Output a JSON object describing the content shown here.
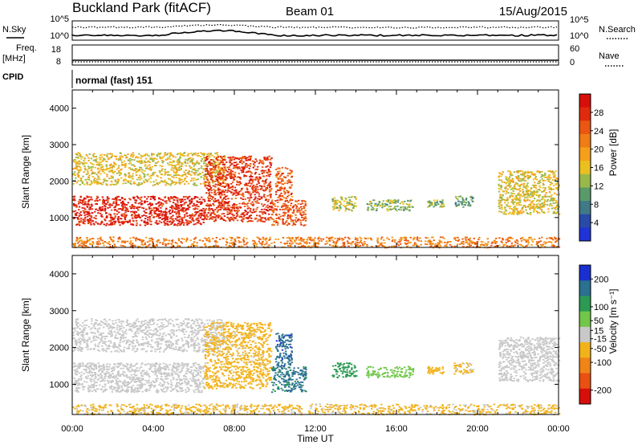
{
  "header": {
    "site": "Buckland Park (fitACF)",
    "beam": "Beam 01",
    "date": "15/Aug/2015"
  },
  "noise_panel": {
    "left_label": "N.Sky",
    "left_ticks": [
      "10^5",
      "10^0"
    ],
    "right_ticks": [
      "10^5",
      "10^0"
    ],
    "right_label": "N.Search"
  },
  "freq_panel": {
    "left_label_line1": "Freq.",
    "left_label_line2": "[MHz]",
    "left_ticks": [
      "18",
      "8"
    ],
    "right_ticks": [
      "60",
      "0"
    ],
    "right_label": "Nave"
  },
  "cpid_panel": {
    "label": "CPID",
    "mode_text": "normal (fast) 151"
  },
  "chart_data": [
    {
      "type": "heatmap",
      "panel": "power",
      "ylabel": "Slant Range [km]",
      "xlabel": "Time UT",
      "x_ticks": [
        "00:00",
        "04:00",
        "08:00",
        "12:00",
        "16:00",
        "20:00",
        "00:00"
      ],
      "xlim_hours": [
        0,
        24
      ],
      "ylim": [
        180,
        4500
      ],
      "y_ticks": [
        1000,
        2000,
        3000,
        4000
      ],
      "colorbar_label": "Power [dB]",
      "colorbar_ticks": [
        4,
        8,
        12,
        16,
        20,
        24,
        28
      ],
      "colorbar_range": [
        0,
        32
      ],
      "colorbar_colors": [
        "#1f33d6",
        "#2a4aa8",
        "#3f7a86",
        "#5a9a6a",
        "#99b84a",
        "#e9c020",
        "#f5a01a",
        "#f07c16",
        "#ea5712",
        "#e02a0c",
        "#d80e0a"
      ],
      "scatter_regions": [
        {
          "start": 0.0,
          "end": 6.5,
          "range_low": 800,
          "range_high": 1600,
          "power": 29
        },
        {
          "start": 0.0,
          "end": 7.5,
          "range_low": 1900,
          "range_high": 2800,
          "power": 16
        },
        {
          "start": 6.5,
          "end": 9.8,
          "range_low": 900,
          "range_high": 2700,
          "power": 27
        },
        {
          "start": 9.8,
          "end": 11.5,
          "range_low": 800,
          "range_high": 1500,
          "power": 25
        },
        {
          "start": 10.0,
          "end": 10.8,
          "range_low": 1500,
          "range_high": 2400,
          "power": 24
        },
        {
          "start": 12.8,
          "end": 14.0,
          "range_low": 1200,
          "range_high": 1600,
          "power": 14
        },
        {
          "start": 14.5,
          "end": 16.8,
          "range_low": 1200,
          "range_high": 1500,
          "power": 12
        },
        {
          "start": 17.5,
          "end": 18.3,
          "range_low": 1300,
          "range_high": 1500,
          "power": 12
        },
        {
          "start": 18.8,
          "end": 19.8,
          "range_low": 1300,
          "range_high": 1600,
          "power": 10
        },
        {
          "start": 21.0,
          "end": 24.0,
          "range_low": 1100,
          "range_high": 2300,
          "power": 16
        },
        {
          "start": 0.0,
          "end": 24.0,
          "range_low": 190,
          "range_high": 480,
          "power": 22
        }
      ]
    },
    {
      "type": "heatmap",
      "panel": "velocity",
      "ylabel": "Slant Range [km]",
      "xlabel": "Time UT",
      "x_ticks": [
        "00:00",
        "04:00",
        "08:00",
        "12:00",
        "16:00",
        "20:00",
        "00:00"
      ],
      "xlim_hours": [
        0,
        24
      ],
      "ylim": [
        180,
        4500
      ],
      "y_ticks": [
        1000,
        2000,
        3000,
        4000
      ],
      "colorbar_label": "Velocity [m s⁻¹]",
      "colorbar_ticks": [
        200,
        100,
        50,
        15,
        -15,
        -50,
        -100,
        -200
      ],
      "colorbar_range": [
        -250,
        250
      ],
      "colorbar_colors": [
        "#1a2fd0",
        "#2a7090",
        "#2c9a52",
        "#72c64a",
        "#c8c8c8",
        "#f2b21a",
        "#f08418",
        "#ea5012",
        "#d80e0a"
      ],
      "scatter_regions": [
        {
          "start": 0.0,
          "end": 6.5,
          "range_low": 800,
          "range_high": 1600,
          "velocity": 0
        },
        {
          "start": 0.0,
          "end": 7.5,
          "range_low": 1900,
          "range_high": 2800,
          "velocity": 0
        },
        {
          "start": 6.5,
          "end": 9.8,
          "range_low": 900,
          "range_high": 2700,
          "velocity": -45
        },
        {
          "start": 9.8,
          "end": 11.5,
          "range_low": 800,
          "range_high": 1500,
          "velocity": 150
        },
        {
          "start": 10.0,
          "end": 10.8,
          "range_low": 1500,
          "range_high": 2400,
          "velocity": 180
        },
        {
          "start": 12.8,
          "end": 14.0,
          "range_low": 1200,
          "range_high": 1600,
          "velocity": 120
        },
        {
          "start": 14.5,
          "end": 16.8,
          "range_low": 1200,
          "range_high": 1500,
          "velocity": 60
        },
        {
          "start": 17.5,
          "end": 18.3,
          "range_low": 1300,
          "range_high": 1500,
          "velocity": -60
        },
        {
          "start": 18.8,
          "end": 19.8,
          "range_low": 1300,
          "range_high": 1600,
          "velocity": -40
        },
        {
          "start": 21.0,
          "end": 24.0,
          "range_low": 1100,
          "range_high": 2300,
          "velocity": 0
        },
        {
          "start": 0.0,
          "end": 24.0,
          "range_low": 190,
          "range_high": 480,
          "velocity": -40
        }
      ]
    }
  ]
}
